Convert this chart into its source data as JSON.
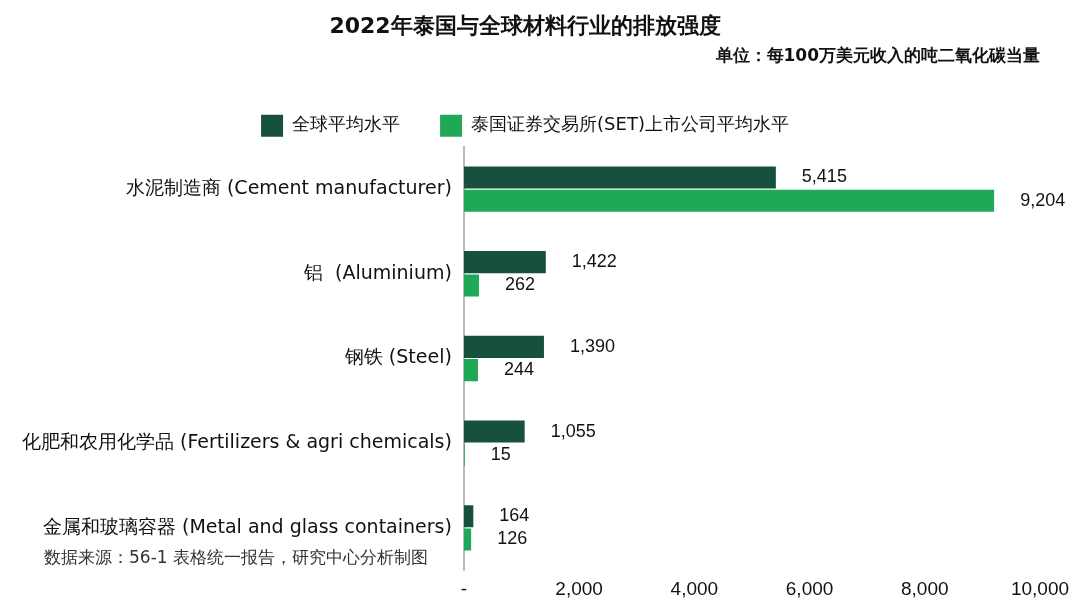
{
  "chart_data": {
    "type": "bar",
    "orientation": "horizontal",
    "title": "2022年泰国与全球材料行业的排放强度",
    "subtitle": "单位：每100万美元收入的吨二氧化碳当量",
    "categories": [
      "水泥制造商 (Cement manufacturer)",
      "铝  (Aluminium)",
      "钢铁 (Steel)",
      "化肥和农用化学品 (Fertilizers & agri chemicals)",
      "金属和玻璃容器 (Metal and glass containers)"
    ],
    "series": [
      {
        "name": "全球平均水平",
        "color": "#17503f",
        "values": [
          5415,
          1422,
          1390,
          1055,
          164
        ]
      },
      {
        "name": "泰国证券交易所(SET)上市公司平均水平",
        "color": "#1fa855",
        "values": [
          9204,
          262,
          244,
          15,
          126
        ]
      }
    ],
    "xlim": [
      0,
      10000
    ],
    "xticks": [
      {
        "value": 0,
        "label": "-"
      },
      {
        "value": 2000,
        "label": "2,000"
      },
      {
        "value": 4000,
        "label": "4,000"
      },
      {
        "value": 6000,
        "label": "6,000"
      },
      {
        "value": 8000,
        "label": "8,000"
      },
      {
        "value": 10000,
        "label": "10,000"
      }
    ],
    "value_labels": [
      [
        "5,415",
        "1,422",
        "1,390",
        "1,055",
        "164"
      ],
      [
        "9,204",
        "262",
        "244",
        "15",
        "126"
      ]
    ],
    "grid": false,
    "legend": "top",
    "annotations": [
      "数据来源：56-1 表格统一报告，研究中心分析制图"
    ]
  }
}
